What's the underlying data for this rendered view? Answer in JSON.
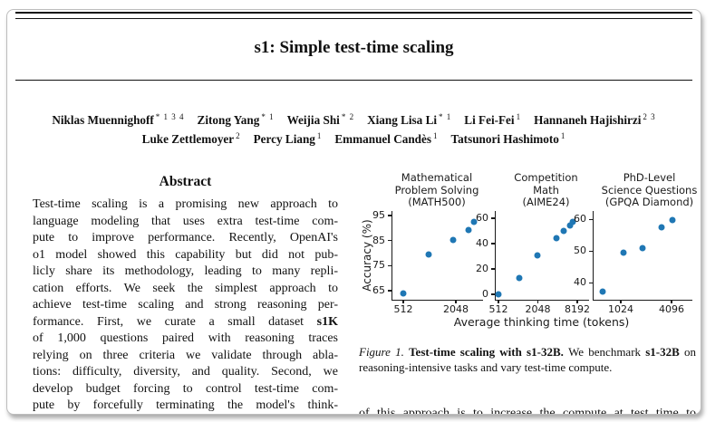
{
  "paper": {
    "title": "s1: Simple test-time scaling",
    "author_rows": [
      [
        {
          "name": "Niklas Muennighoff",
          "sup": "* 1 3 4"
        },
        {
          "name": "Zitong Yang",
          "sup": "* 1"
        },
        {
          "name": "Weijia Shi",
          "sup": "* 2"
        },
        {
          "name": "Xiang Lisa Li",
          "sup": "* 1"
        },
        {
          "name": "Li Fei-Fei",
          "sup": "1"
        },
        {
          "name": "Hannaneh Hajishirzi",
          "sup": "2 3"
        }
      ],
      [
        {
          "name": "Luke Zettlemoyer",
          "sup": "2"
        },
        {
          "name": "Percy Liang",
          "sup": "1"
        },
        {
          "name": "Emmanuel Candès",
          "sup": "1"
        },
        {
          "name": "Tatsunori Hashimoto",
          "sup": "1"
        }
      ]
    ],
    "abstract_heading": "Abstract",
    "abstract_lines": [
      [
        {
          "t": "Test-time scaling is a promising new approach to"
        }
      ],
      [
        {
          "t": "language modeling that uses extra test-time com-"
        }
      ],
      [
        {
          "t": "pute to improve performance. Recently, OpenAI's"
        }
      ],
      [
        {
          "t": "o1 model showed this capability but did not pub-"
        }
      ],
      [
        {
          "t": "licly share its methodology, leading to many repli-"
        }
      ],
      [
        {
          "t": "cation efforts. We seek the simplest approach to"
        }
      ],
      [
        {
          "t": "achieve test-time scaling and strong reasoning per-"
        }
      ],
      [
        {
          "t": "formance. First, we curate a small dataset "
        },
        {
          "t": "s1K",
          "b": true
        }
      ],
      [
        {
          "t": "of 1,000 questions paired with reasoning traces"
        }
      ],
      [
        {
          "t": "relying on three criteria we validate through abla-"
        }
      ],
      [
        {
          "t": "tions: difficulty, diversity, and quality. Second, we"
        }
      ],
      [
        {
          "t": "develop budget forcing to control test-time com-"
        }
      ],
      [
        {
          "t": "pute by forcefully terminating the model's think-"
        }
      ]
    ],
    "caption_segments": [
      {
        "t": "Figure 1. ",
        "i": true
      },
      {
        "t": "Test-time scaling with s1-32B. ",
        "b": true
      },
      {
        "t": "We benchmark "
      },
      {
        "t": "s1-32B",
        "b": true
      },
      {
        "t": " on reasoning-intensive tasks and vary test-time compute."
      }
    ],
    "body_fragment": "of this approach is to increase the compute at test time to"
  },
  "figure": {
    "ylabel": "Accuracy (%)",
    "xlabel": "Average thinking time (tokens)",
    "marker_color": "#1f77b4"
  },
  "chart_data": [
    {
      "type": "scatter",
      "title": "Mathematical Problem Solving (MATH500)",
      "title_lines": [
        "Mathematical",
        "Problem Solving",
        "(MATH500)"
      ],
      "xlabel": "Average thinking time (tokens)",
      "ylabel": "Accuracy (%)",
      "xscale": "log",
      "grid": false,
      "xlim": [
        384,
        4200
      ],
      "ylim": [
        61.4,
        96.8
      ],
      "xticks": [
        512,
        2048
      ],
      "yticks": [
        65,
        75,
        85,
        95
      ],
      "x": [
        512,
        1000,
        1900,
        2870,
        3280
      ],
      "y": [
        64,
        79.5,
        85.3,
        89.3,
        92.5
      ]
    },
    {
      "type": "scatter",
      "title": "Competition Math (AIME24)",
      "title_lines": [
        "Competition",
        "Math",
        "(AIME24)"
      ],
      "xlabel": "Average thinking time (tokens)",
      "ylabel": "Accuracy (%)",
      "xscale": "log",
      "grid": false,
      "xlim": [
        466,
        12400
      ],
      "ylim": [
        -4.3,
        65.7
      ],
      "xticks": [
        512,
        2048,
        8192
      ],
      "yticks": [
        0,
        20,
        40,
        60
      ],
      "x": [
        512,
        1050,
        2048,
        3900,
        5100,
        6300,
        6900
      ],
      "y": [
        0,
        13,
        30.5,
        44,
        50,
        54,
        57
      ]
    },
    {
      "type": "scatter",
      "title": "PhD-Level Science Questions (GPQA Diamond)",
      "title_lines": [
        "PhD-Level",
        "Science Questions",
        "(GPQA Diamond)"
      ],
      "xlabel": "Average thinking time (tokens)",
      "ylabel": "Accuracy (%)",
      "xscale": "log",
      "grid": false,
      "xlim": [
        487,
        7230
      ],
      "ylim": [
        34.6,
        62.6
      ],
      "xticks": [
        1024,
        4096
      ],
      "yticks": [
        40,
        50,
        60
      ],
      "x": [
        630,
        1100,
        1850,
        3100,
        4200
      ],
      "y": [
        37.3,
        49.4,
        50.9,
        57.6,
        59.7
      ]
    }
  ]
}
